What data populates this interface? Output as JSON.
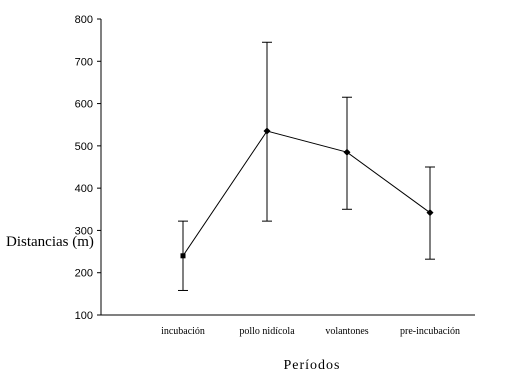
{
  "chart_data": {
    "type": "line",
    "title": "",
    "xlabel": "Períodos",
    "ylabel": "Distancias (m)",
    "categories": [
      "incubación",
      "pollo nidícola",
      "volantones",
      "pre-incubación"
    ],
    "series": [
      {
        "values": [
          240,
          535,
          485,
          342
        ],
        "error_low": [
          158,
          322,
          350,
          232
        ],
        "error_high": [
          322,
          745,
          615,
          450
        ]
      }
    ],
    "yticks": [
      100,
      200,
      300,
      400,
      500,
      600,
      700,
      800
    ],
    "ylim": [
      100,
      800
    ],
    "grid": false,
    "legend": "none",
    "colors": {
      "line": "#000000",
      "marker": "#000000"
    }
  }
}
